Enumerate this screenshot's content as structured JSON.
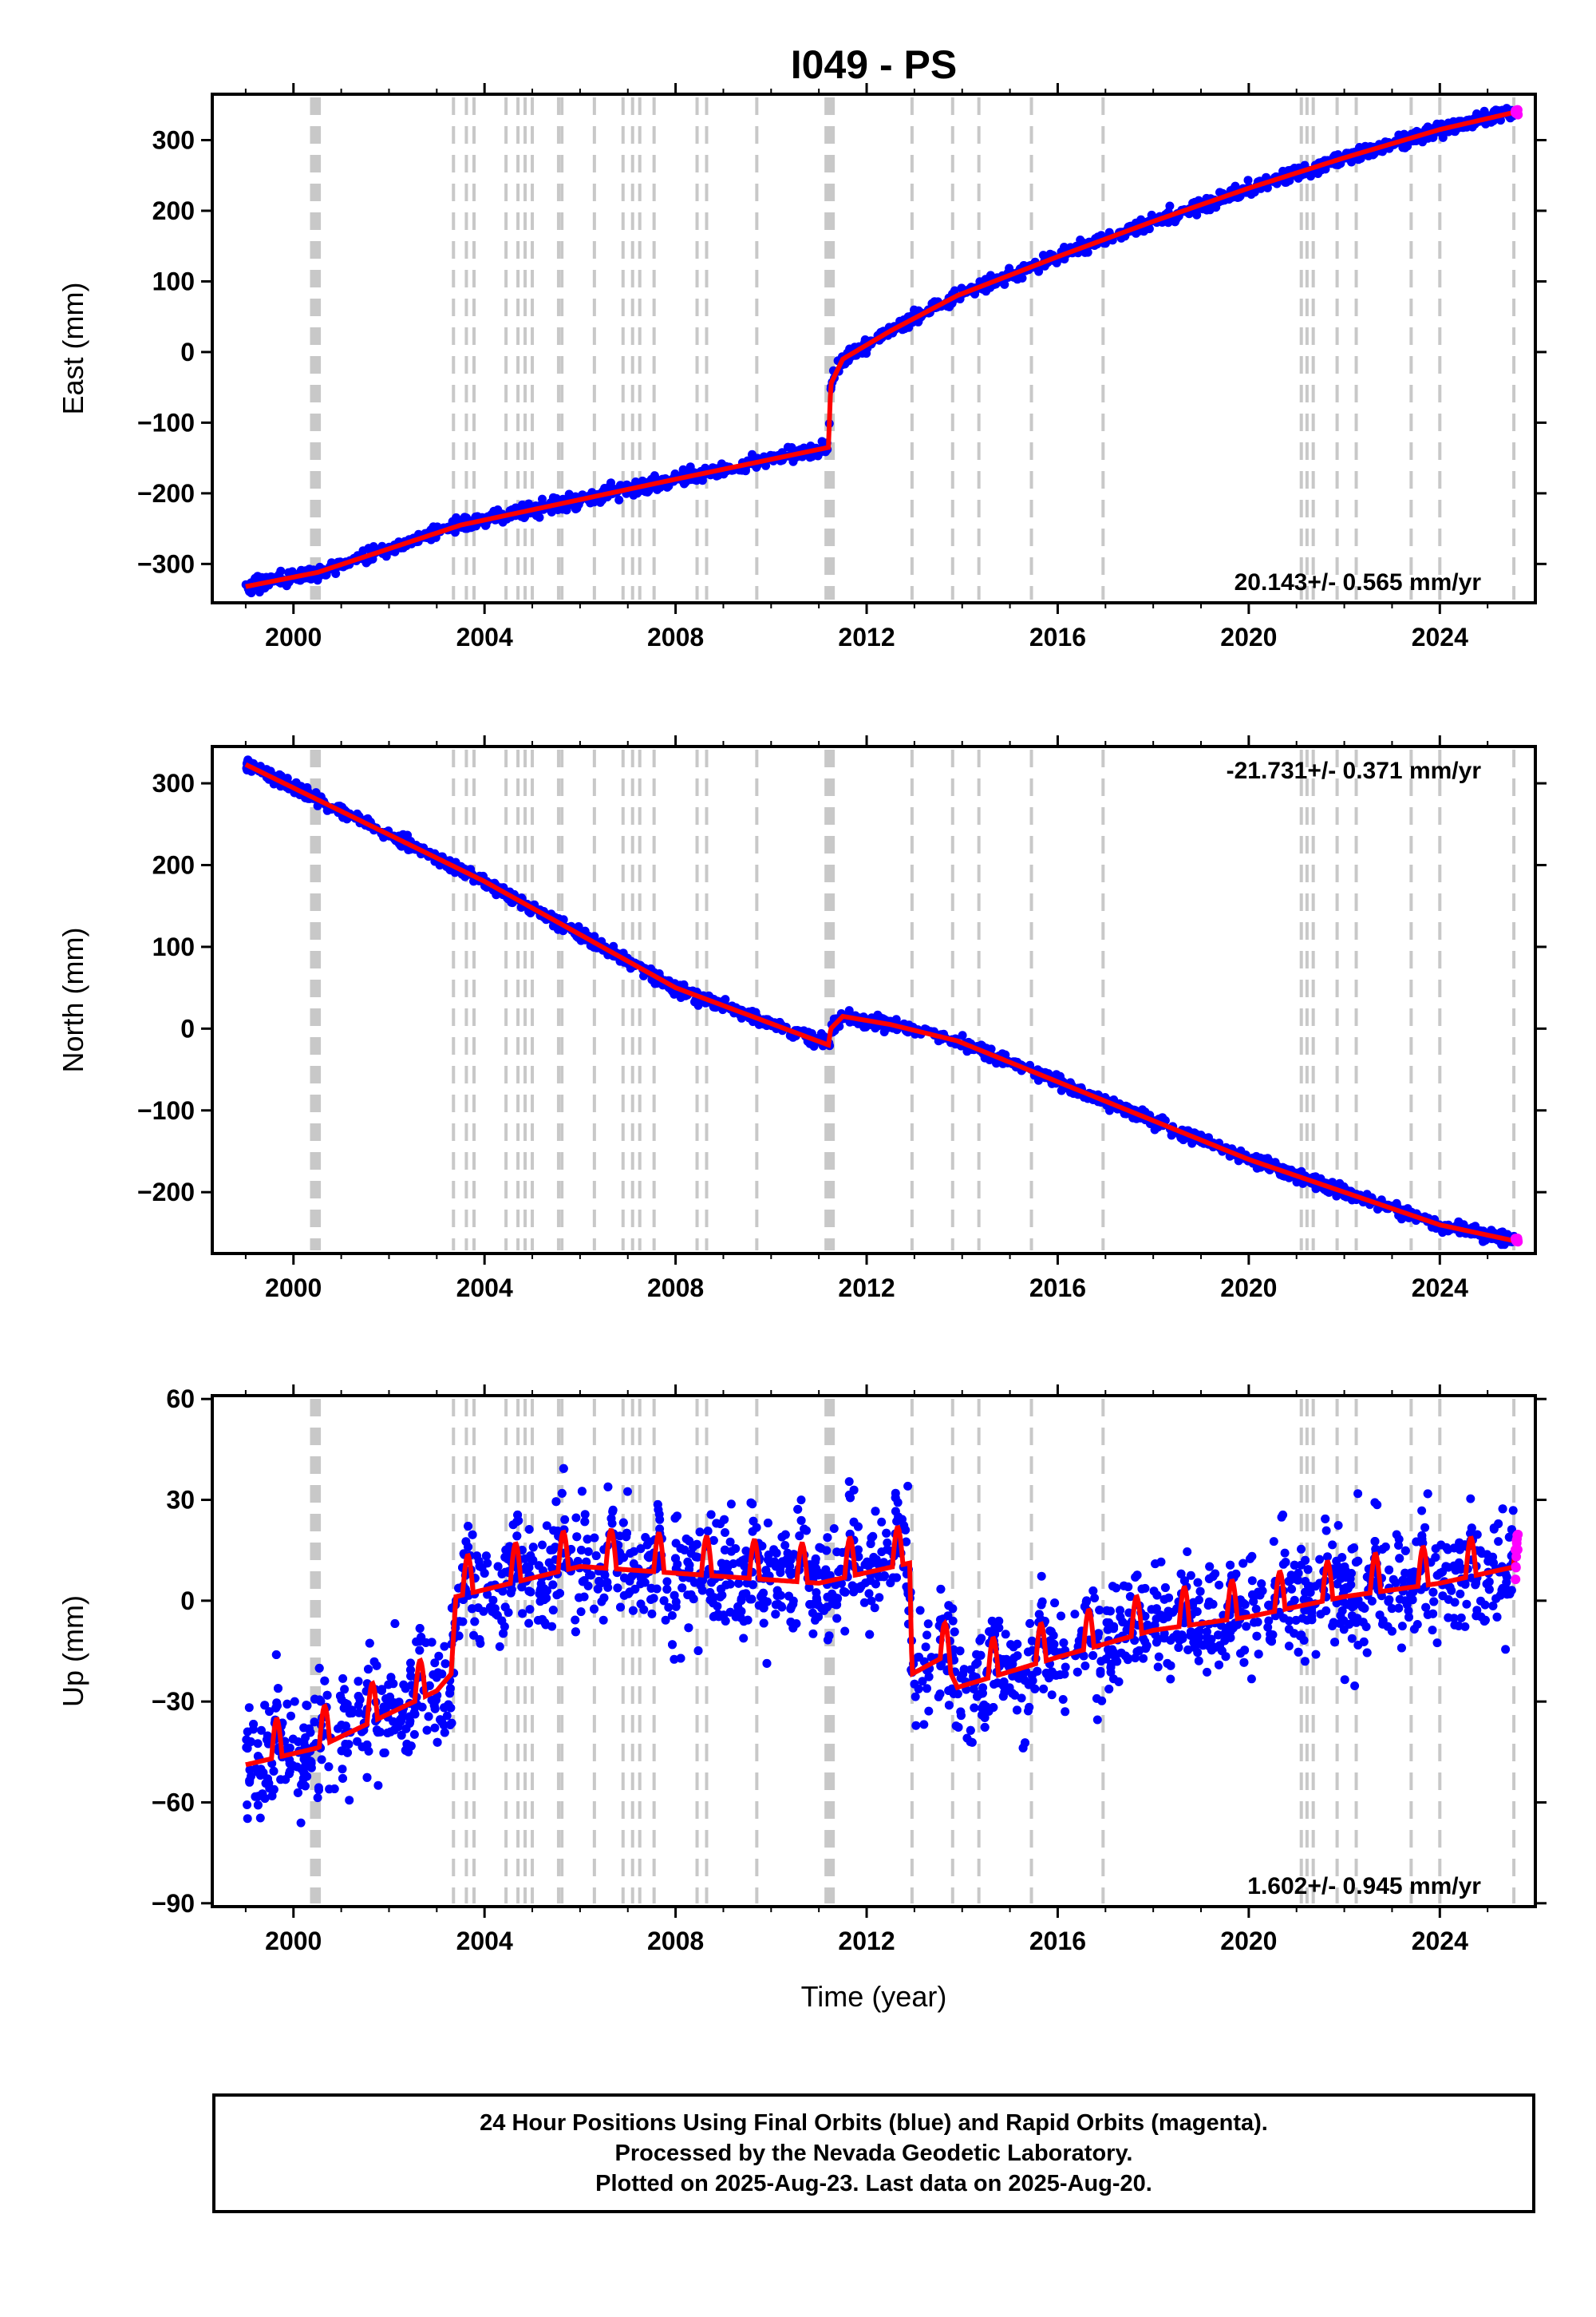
{
  "chart_data": {
    "title": "I049 - PS",
    "type": "scatter",
    "xlabel": "Time (year)",
    "x_ticks": [
      2000,
      2004,
      2008,
      2012,
      2016,
      2020,
      2024
    ],
    "xlim": [
      1998.3,
      2026.0
    ],
    "colors": {
      "final": "#0000ff",
      "rapid": "#ff00ff",
      "model": "#ff0000",
      "step": "#c8c8c8"
    },
    "step_years": [
      2000.38,
      2000.42,
      2000.46,
      2000.5,
      2000.54,
      2003.35,
      2003.62,
      2003.78,
      2004.45,
      2004.7,
      2004.85,
      2005.0,
      2005.55,
      2005.62,
      2006.3,
      2006.9,
      2007.1,
      2007.25,
      2007.55,
      2008.45,
      2008.65,
      2009.7,
      2011.15,
      2011.2,
      2011.25,
      2011.3,
      2012.95,
      2013.8,
      2014.35,
      2015.45,
      2016.95,
      2021.1,
      2021.22,
      2021.35,
      2021.85,
      2022.25,
      2023.4,
      2024.0,
      2025.55
    ],
    "panels": [
      {
        "ylabel": "East (mm)",
        "ylim": [
          -355,
          365
        ],
        "y_ticks": [
          -300,
          -200,
          -100,
          0,
          100,
          200,
          300
        ],
        "rate_label": "20.143+/- 0.565 mm/yr",
        "rate_position": "bottom-right",
        "model": [
          [
            1999.0,
            -332
          ],
          [
            2000.5,
            -312
          ],
          [
            2003.5,
            -245
          ],
          [
            2008.0,
            -180
          ],
          [
            2011.2,
            -135
          ],
          [
            2011.25,
            -45
          ],
          [
            2011.5,
            -10
          ],
          [
            2012.5,
            30
          ],
          [
            2013.9,
            80
          ],
          [
            2016.0,
            135
          ],
          [
            2018.0,
            185
          ],
          [
            2020.0,
            232
          ],
          [
            2022.0,
            275
          ],
          [
            2024.0,
            315
          ],
          [
            2025.6,
            340
          ]
        ],
        "rapid_last": 340,
        "noise_mm": 5
      },
      {
        "ylabel": "North (mm)",
        "ylim": [
          -275,
          345
        ],
        "y_ticks": [
          -200,
          -100,
          0,
          100,
          200,
          300
        ],
        "rate_label": "-21.731+/- 0.371 mm/yr",
        "rate_position": "top-right",
        "model": [
          [
            1999.0,
            323
          ],
          [
            2004.0,
            180
          ],
          [
            2008.0,
            50
          ],
          [
            2011.2,
            -20
          ],
          [
            2011.25,
            0
          ],
          [
            2011.5,
            15
          ],
          [
            2012.5,
            5
          ],
          [
            2013.9,
            -15
          ],
          [
            2016.0,
            -65
          ],
          [
            2020.0,
            -160
          ],
          [
            2024.0,
            -240
          ],
          [
            2025.6,
            -260
          ]
        ],
        "rapid_last": -258,
        "noise_mm": 4
      },
      {
        "ylabel": "Up (mm)",
        "ylim": [
          -91,
          61
        ],
        "y_ticks": [
          -90,
          -60,
          -30,
          0,
          30,
          60
        ],
        "rate_label": "1.602+/- 0.945 mm/yr",
        "rate_position": "bottom-right",
        "model": [
          [
            1999.0,
            -47
          ],
          [
            2000.5,
            -42
          ],
          [
            2003.0,
            -25
          ],
          [
            2003.3,
            -20
          ],
          [
            2003.4,
            3
          ],
          [
            2006.0,
            12
          ],
          [
            2008.0,
            10
          ],
          [
            2011.0,
            7
          ],
          [
            2012.9,
            13
          ],
          [
            2012.95,
            -20
          ],
          [
            2013.6,
            -15
          ],
          [
            2013.9,
            -24
          ],
          [
            2016.0,
            -15
          ],
          [
            2018.0,
            -7
          ],
          [
            2020.0,
            -3
          ],
          [
            2022.0,
            3
          ],
          [
            2024.0,
            7
          ],
          [
            2025.6,
            12
          ]
        ],
        "seasonal_amp": 6,
        "noise_mm": 8,
        "rapid_last": 15
      }
    ]
  },
  "footer": {
    "line1": "24 Hour Positions Using Final Orbits (blue) and Rapid Orbits (magenta).",
    "line2": "Processed by the Nevada Geodetic Laboratory.",
    "line3": "Plotted on 2025-Aug-23. Last data on 2025-Aug-20."
  }
}
